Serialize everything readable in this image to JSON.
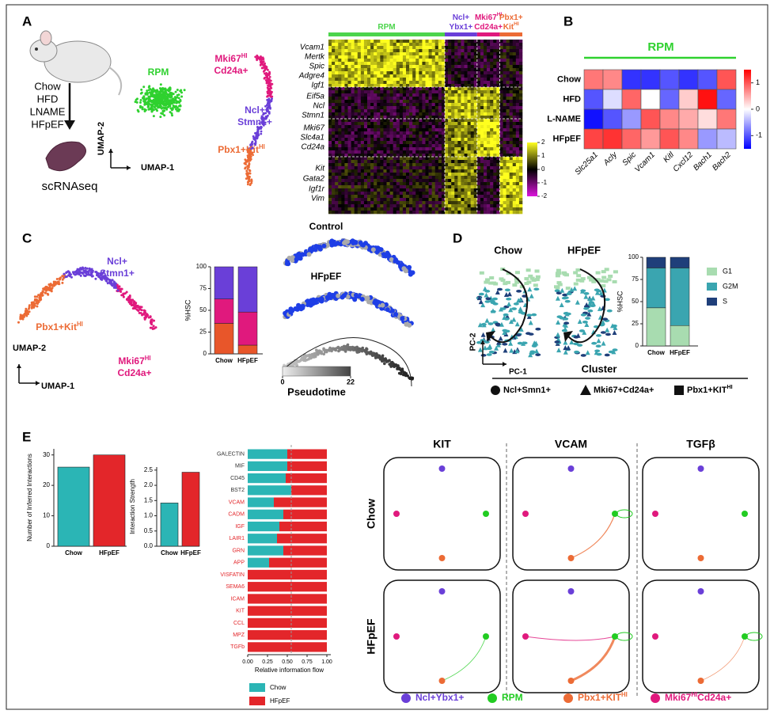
{
  "panel_labels": [
    "A",
    "B",
    "C",
    "D",
    "E"
  ],
  "a": {
    "diets": [
      "Chow",
      "HFD",
      "LNAME",
      "HFpEF"
    ],
    "output": "scRNAseq",
    "umap": {
      "x_label": "UMAP-1",
      "y_label": "UMAP-2",
      "clusters": [
        {
          "label": [
            [
              "RPM"
            ]
          ],
          "color": "#2fd12f"
        },
        {
          "label": [
            [
              "Mki67",
              {
                "sup": "HI"
              }
            ],
            [
              "Cd24a+"
            ]
          ],
          "color": "#e0197d"
        },
        {
          "label": [
            [
              "Ncl+"
            ],
            [
              "Stmn1+"
            ]
          ],
          "color": "#6a3fd8"
        },
        {
          "label": [
            [
              "Pbx1+Kit",
              {
                "sup": "HI"
              }
            ]
          ],
          "color": "#ec6b35"
        }
      ]
    },
    "heatmap": {
      "groups": [
        {
          "label": [
            [
              "RPM"
            ]
          ],
          "color": "#4cd44c"
        },
        {
          "label": [
            [
              "Ncl+"
            ],
            [
              "Ybx1+"
            ]
          ],
          "color": "#6a3fd8"
        },
        {
          "label": [
            [
              "Mki67",
              {
                "sup": "HI"
              }
            ],
            [
              "Cd24a+"
            ]
          ],
          "color": "#e0197d"
        },
        {
          "label": [
            [
              "Pbx1+"
            ],
            [
              "Kit",
              {
                "sup": "HI"
              }
            ]
          ],
          "color": "#ec6b35"
        }
      ],
      "genes": [
        "Vcam1",
        "Mertk",
        "Spic",
        "Adgre4",
        "Igf1",
        "Eif5a",
        "Ncl",
        "Stmn1",
        "Mki67",
        "Slc4a1",
        "Cd24a",
        "Kit",
        "Gata2",
        "Igf1r",
        "Vim"
      ],
      "colorbar_ticks": [
        2,
        1,
        0,
        -1,
        -2
      ]
    }
  },
  "c": {
    "umap": {
      "x_label": "UMAP-1",
      "y_label": "UMAP-2",
      "clusters": [
        {
          "label": [
            [
              "Ncl+"
            ],
            [
              "Stmn1+"
            ]
          ],
          "color": "#6a3fd8"
        },
        {
          "label": [
            [
              "Pbx1+Kit",
              {
                "sup": "HI"
              }
            ]
          ],
          "color": "#ec6b35"
        },
        {
          "label": [
            [
              "Mki67",
              {
                "sup": "HI"
              }
            ],
            [
              "Cd24a+"
            ]
          ],
          "color": "#e0197d"
        }
      ]
    },
    "pseudotime": {
      "conditions": [
        "Control",
        "HFpEF"
      ],
      "colorbar_label": "Pseudotime",
      "colorbar_ticks": [
        0,
        22
      ]
    }
  },
  "d": {
    "conditions": [
      "Chow",
      "HFpEF"
    ],
    "x_label": "PC-1",
    "y_label": "PC-2",
    "cluster_title": "Cluster",
    "clusters": [
      {
        "shape": "circle",
        "label": [
          [
            "Ncl+Smn1+"
          ]
        ]
      },
      {
        "shape": "triangle",
        "label": [
          [
            "Mki67+Cd24a+"
          ]
        ]
      },
      {
        "shape": "square",
        "label": [
          [
            "Pbx1+KIT",
            {
              "sup": "HI"
            }
          ]
        ]
      }
    ]
  },
  "e_network": {
    "pathways": [
      "KIT",
      "VCAM",
      "TGFβ"
    ],
    "conditions": [
      "Chow",
      "HFpEF"
    ],
    "nodes": [
      {
        "label": [
          [
            "Ncl+Ybx1+"
          ]
        ],
        "color": "#6a3fd8"
      },
      {
        "label": [
          [
            "RPM"
          ]
        ],
        "color": "#22cc22"
      },
      {
        "label": [
          [
            "Pbx1+KIT",
            {
              "sup": "HI"
            }
          ]
        ],
        "color": "#ec6b35"
      },
      {
        "label": [
          [
            "Mki67",
            {
              "sup": "HI"
            },
            "Cd24a+"
          ]
        ],
        "color": "#e0197d"
      }
    ]
  },
  "chart_data": [
    {
      "type": "heatmap",
      "title": "RPM",
      "rows": [
        "Chow",
        "HFD",
        "L-NAME",
        "HFpEF"
      ],
      "columns": [
        "Slc25a1",
        "Acly",
        "Spic",
        "Vcam1",
        "Kitl",
        "Cxcl12",
        "Bach1",
        "Bach2"
      ],
      "values": [
        [
          0.8,
          0.7,
          -1.2,
          -1.2,
          -1.0,
          -1.2,
          -1.0,
          1.0
        ],
        [
          -1.0,
          -0.2,
          0.9,
          0,
          -0.9,
          0.3,
          1.4,
          -0.9
        ],
        [
          -1.4,
          -1.0,
          -0.6,
          1.0,
          0.7,
          0.5,
          0.2,
          0.8
        ],
        [
          1.1,
          1.2,
          0.9,
          0.6,
          1.0,
          0.7,
          -0.6,
          -0.4
        ]
      ],
      "zlim": [
        -1.5,
        1.5
      ],
      "colorbar_ticks": [
        1,
        0,
        -1
      ]
    },
    {
      "type": "stacked_bar",
      "y_label": "%HSC",
      "categories": [
        "Chow",
        "HFpEF"
      ],
      "series": [
        {
          "color": "#e8562a",
          "values": [
            35,
            10
          ]
        },
        {
          "color": "#e0197d",
          "values": [
            28,
            38
          ]
        },
        {
          "color": "#6a3fd8",
          "values": [
            37,
            52
          ]
        }
      ],
      "ylim": [
        0,
        100
      ],
      "yticks": [
        0,
        25,
        50,
        75,
        100
      ]
    },
    {
      "type": "stacked_bar",
      "y_label": "%HSC",
      "categories": [
        "Chow",
        "HFpEF"
      ],
      "series": [
        {
          "name": "G1",
          "color": "#a8dcb0",
          "values": [
            43,
            23
          ]
        },
        {
          "name": "G2M",
          "color": "#3aa5b0",
          "values": [
            45,
            65
          ]
        },
        {
          "name": "S",
          "color": "#1f3f7a",
          "values": [
            12,
            12
          ]
        }
      ],
      "ylim": [
        0,
        100
      ],
      "yticks": [
        0,
        25,
        50,
        75,
        100
      ]
    },
    {
      "type": "bar",
      "y_label": "Number of Inferred Interactions",
      "categories": [
        "Chow",
        "HFpEF"
      ],
      "values": [
        26,
        30
      ],
      "colors": [
        "#2bb5b5",
        "#e3262a"
      ],
      "ylim": [
        0,
        32
      ],
      "yticks": [
        0,
        10,
        20,
        30
      ]
    },
    {
      "type": "bar",
      "y_label": "Interaction Strength",
      "categories": [
        "Chow",
        "HFpEF"
      ],
      "values": [
        1.42,
        2.43
      ],
      "colors": [
        "#2bb5b5",
        "#e3262a"
      ],
      "ylim": [
        0,
        2.6
      ],
      "yticks": [
        {
          "value": 0,
          "label": "0.0"
        },
        {
          "value": 0.5,
          "label": "0.5"
        },
        {
          "value": 1,
          "label": "1.0"
        },
        {
          "value": 1.5,
          "label": "1.5"
        },
        {
          "value": 2,
          "label": "2.0"
        },
        {
          "value": 2.5,
          "label": "2.5"
        }
      ]
    },
    {
      "type": "stacked_barh",
      "x_label": "Relative information flow",
      "categories": [
        "GALECTIN",
        "MIF",
        "CD45",
        "BST2",
        "VCAM",
        "CADM",
        "IGF",
        "LAIR1",
        "GRN",
        "APP",
        "VISFATIN",
        "SEMA6",
        "ICAM",
        "KIT",
        "CCL",
        "MPZ",
        "TGFb"
      ],
      "label_colors": [
        "#333333",
        "#333333",
        "#333333",
        "#333333",
        "#e3262a",
        "#e3262a",
        "#e3262a",
        "#e3262a",
        "#e3262a",
        "#e3262a",
        "#e3262a",
        "#e3262a",
        "#e3262a",
        "#e3262a",
        "#e3262a",
        "#e3262a",
        "#e3262a"
      ],
      "series": [
        {
          "name": "Chow",
          "color": "#2bb5b5",
          "values": [
            0.5,
            0.5,
            0.48,
            0.55,
            0.33,
            0.45,
            0.4,
            0.37,
            0.45,
            0.27,
            0,
            0,
            0,
            0,
            0,
            0,
            0
          ]
        },
        {
          "name": "HFpEF",
          "color": "#e3262a",
          "values": [
            0.5,
            0.5,
            0.52,
            0.45,
            0.67,
            0.55,
            0.6,
            0.63,
            0.55,
            0.73,
            1,
            1,
            1,
            1,
            1,
            1,
            1
          ]
        }
      ],
      "xlim": [
        0,
        1.05
      ],
      "xticks": [
        {
          "value": 0,
          "label": "0.00"
        },
        {
          "value": 0.25,
          "label": "0.25"
        },
        {
          "value": 0.5,
          "label": "0.50"
        },
        {
          "value": 0.75,
          "label": "0.75"
        },
        {
          "value": 1,
          "label": "1.00"
        }
      ],
      "reference_line": 0.55
    }
  ]
}
